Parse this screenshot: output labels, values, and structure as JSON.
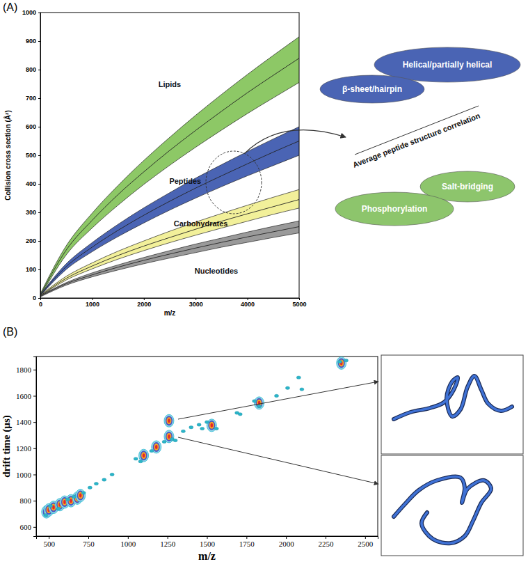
{
  "panel_labels": [
    "(A)",
    "(B)"
  ],
  "structure_scale": {
    "title": "Average peptide structure correlation",
    "items": [
      {
        "text": "Helical/partially helical",
        "color": "#4a64b4"
      },
      {
        "text": "β-sheet/hairpin",
        "color": "#4a64b4"
      },
      {
        "text": "Salt-bridging",
        "color": "#8dc56c"
      },
      {
        "text": "Phosphorylation",
        "color": "#8dc56c"
      }
    ]
  },
  "chart_data": [
    {
      "type": "band",
      "xlabel": "m/z",
      "ylabel": "Collision cross section (Å²)",
      "x": [
        0,
        500,
        1000,
        1500,
        2000,
        2500,
        3000,
        3500,
        4000,
        4500,
        5000
      ],
      "xlim": [
        0,
        5000
      ],
      "ylim": [
        0,
        1000
      ],
      "xticks": [
        0,
        1000,
        2000,
        3000,
        4000,
        5000
      ],
      "yticks": [
        0,
        100,
        200,
        300,
        400,
        500,
        600,
        700,
        800,
        900,
        1000
      ],
      "series": [
        {
          "color": "#8dc866",
          "values": [
            10,
            168,
            272,
            362,
            442,
            517,
            587,
            654,
            719,
            780,
            840
          ],
          "upper": [
            15,
            183,
            297,
            394,
            482,
            563,
            640,
            713,
            783,
            850,
            915
          ],
          "lower": [
            5,
            151,
            245,
            325,
            398,
            465,
            528,
            588,
            646,
            701,
            755
          ]
        },
        {
          "color": "#4a64b4",
          "values": [
            10,
            110,
            178,
            237,
            290,
            339,
            385,
            428,
            470,
            511,
            550
          ],
          "upper": [
            12,
            120,
            194,
            258,
            316,
            369,
            420,
            467,
            513,
            557,
            600
          ],
          "lower": [
            8,
            100,
            162,
            215,
            263,
            308,
            350,
            390,
            428,
            464,
            500
          ]
        },
        {
          "color": "#f2f09a",
          "values": [
            8,
            69,
            112,
            149,
            182,
            212,
            241,
            269,
            295,
            320,
            345
          ],
          "upper": [
            10,
            76,
            123,
            164,
            200,
            234,
            266,
            296,
            325,
            353,
            380
          ],
          "lower": [
            6,
            63,
            102,
            136,
            166,
            194,
            220,
            245,
            269,
            293,
            315
          ]
        },
        {
          "color": "#9a9a9a",
          "values": [
            6,
            50,
            81,
            108,
            132,
            154,
            175,
            195,
            214,
            232,
            250
          ],
          "upper": [
            8,
            54,
            88,
            116,
            142,
            166,
            189,
            210,
            231,
            251,
            270
          ],
          "lower": [
            4,
            45,
            74,
            98,
            120,
            140,
            159,
            178,
            195,
            212,
            228
          ]
        }
      ],
      "annotations": [
        {
          "text": "Lipids",
          "x": 2500,
          "y": 740
        },
        {
          "text": "Peptides",
          "x": 2800,
          "y": 400
        },
        {
          "text": "Carbohydrates",
          "x": 3100,
          "y": 252
        },
        {
          "text": "Nucleotides",
          "x": 3400,
          "y": 85
        }
      ]
    },
    {
      "type": "scatter",
      "xlabel": "m/z",
      "ylabel": "drift time (µs)",
      "xlim": [
        420,
        2580
      ],
      "ylim": [
        530,
        1900
      ],
      "xticks": [
        500,
        750,
        1000,
        1250,
        1500,
        1750,
        2000,
        2250,
        2500
      ],
      "yticks": [
        600,
        800,
        1000,
        1200,
        1400,
        1600,
        1800
      ],
      "series": [
        {
          "color": "#f5a623",
          "marker": "blob",
          "x": [
            485,
            500,
            530,
            570,
            600,
            640,
            680,
            700,
            1100,
            1180,
            1260,
            1260,
            1530,
            1830,
            2350
          ],
          "values": [
            715,
            730,
            750,
            770,
            790,
            800,
            820,
            840,
            1145,
            1210,
            1410,
            1290,
            1375,
            1545,
            1850
          ]
        },
        {
          "color": "#2bb5c8",
          "marker": "dot",
          "x": [
            480,
            510,
            560,
            620,
            660,
            720,
            760,
            800,
            850,
            900,
            1050,
            1080,
            1150,
            1230,
            1280,
            1300,
            1350,
            1400,
            1450,
            1470,
            1500,
            1560,
            1690,
            1710,
            1800,
            1830,
            1940,
            2010,
            2080,
            2100,
            2340,
            2380
          ],
          "values": [
            690,
            760,
            740,
            810,
            830,
            860,
            900,
            930,
            960,
            1000,
            1120,
            1100,
            1180,
            1250,
            1270,
            1260,
            1330,
            1360,
            1380,
            1350,
            1400,
            1350,
            1470,
            1460,
            1560,
            1520,
            1600,
            1660,
            1740,
            1650,
            1860,
            1870
          ]
        }
      ]
    }
  ]
}
